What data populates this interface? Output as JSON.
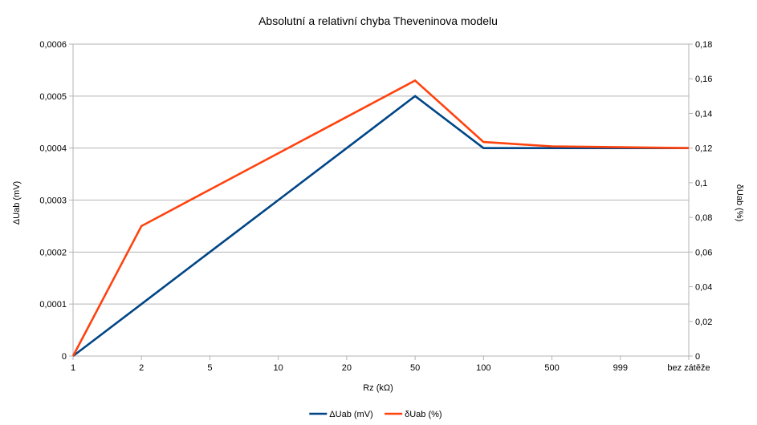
{
  "chart_data": {
    "type": "line",
    "title": "Absolutní a relativní chyba Theveninova modelu",
    "xlabel": "Rz (kΩ)",
    "ylabel_left": "ΔUab (mV)",
    "ylabel_right": "δUab (%)",
    "categories": [
      "1",
      "2",
      "5",
      "10",
      "20",
      "50",
      "100",
      "500",
      "999",
      "bez zátěže"
    ],
    "y_left": {
      "lim": [
        0,
        0.0006
      ],
      "ticks": [
        0,
        0.0001,
        0.0002,
        0.0003,
        0.0004,
        0.0005,
        0.0006
      ],
      "tick_labels": [
        "0",
        "0,0001",
        "0,0002",
        "0,0003",
        "0,0004",
        "0,0005",
        "0,0006"
      ]
    },
    "y_right": {
      "lim": [
        0,
        0.18
      ],
      "ticks": [
        0,
        0.02,
        0.04,
        0.06,
        0.08,
        0.1,
        0.12,
        0.14,
        0.16,
        0.18
      ],
      "tick_labels": [
        "0",
        "0,02",
        "0,04",
        "0,06",
        "0,08",
        "0,1",
        "0,12",
        "0,14",
        "0,16",
        "0,18"
      ]
    },
    "grid": true,
    "legend_position": "bottom",
    "series": [
      {
        "name": "ΔUab (mV)",
        "axis": "left",
        "color": "#004586",
        "values": [
          0,
          0.0001,
          0.0002,
          0.0003,
          0.0004,
          0.0005,
          0.0004,
          0.0004,
          0.0004,
          0.0004
        ]
      },
      {
        "name": "δUab (%)",
        "axis": "right",
        "color": "#ff420e",
        "values": [
          0,
          0.075,
          0.096,
          0.117,
          0.138,
          0.159,
          0.1235,
          0.121,
          0.1205,
          0.12
        ]
      }
    ]
  }
}
